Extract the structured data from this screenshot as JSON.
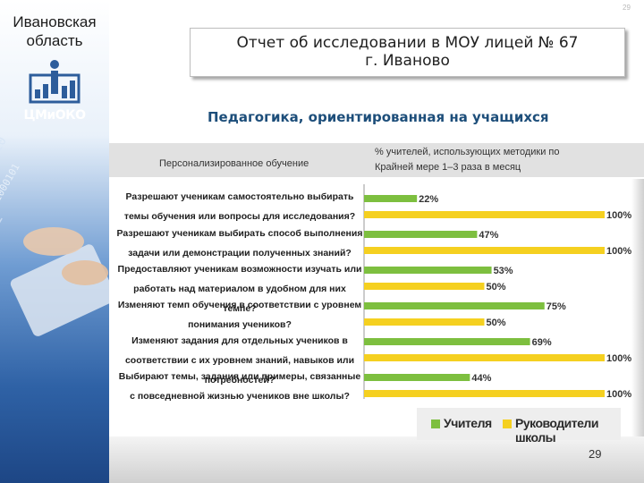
{
  "slide": {
    "region": "Ивановская область",
    "region_line1": "Ивановская",
    "region_line2": "область",
    "logo_text": "ЦМиОКО",
    "title_line1": "Отчет об исследовании в МОУ лицей № 67",
    "title_line2": "г. Иваново",
    "subtitle": "Педагогика, ориентированная на учащихся",
    "band_left": "Персонализированное обучение",
    "band_right": "% учителей, использующих методики по Крайней мере 1–3 раза в месяц",
    "slide_number_top": "29",
    "page_number": "29"
  },
  "colors": {
    "teachers": "#7dbf3f",
    "leaders": "#f5d020",
    "band": "#e1e1e1",
    "subtitle": "#1d4e7a"
  },
  "chart_data": {
    "type": "bar",
    "orientation": "horizontal",
    "categories": [
      "Разрешают ученикам самостоятельно выбирать темы обучения или вопросы для исследования?",
      "Разрешают ученикам выбирать способ выполнения задачи или демонстрации полученных знаний?",
      "Предоставляют ученикам возможности изучать или работать над материалом в удобном для них темпе?",
      "Изменяют темп обучения в соответствии с уровнем понимания учеников?",
      "Изменяют задания для отдельных учеников в соответствии с их уровнем знаний, навыков или потребностей?",
      "Выбирают темы, задания или примеры, связанные с повседневной жизнью учеников вне школы?"
    ],
    "series": [
      {
        "name": "Учителя",
        "values": [
          22,
          47,
          53,
          75,
          69,
          44
        ],
        "labels": [
          "22%",
          "47%",
          "53%",
          "75%",
          "69%",
          "44%"
        ]
      },
      {
        "name": "Руководители школы",
        "values": [
          100,
          100,
          50,
          50,
          100,
          100
        ],
        "labels": [
          "100%",
          "100%",
          "50%",
          "50%",
          "100%",
          "100%"
        ]
      }
    ],
    "xlim": [
      0,
      100
    ],
    "legend_position": "bottom-right",
    "grid": false
  }
}
